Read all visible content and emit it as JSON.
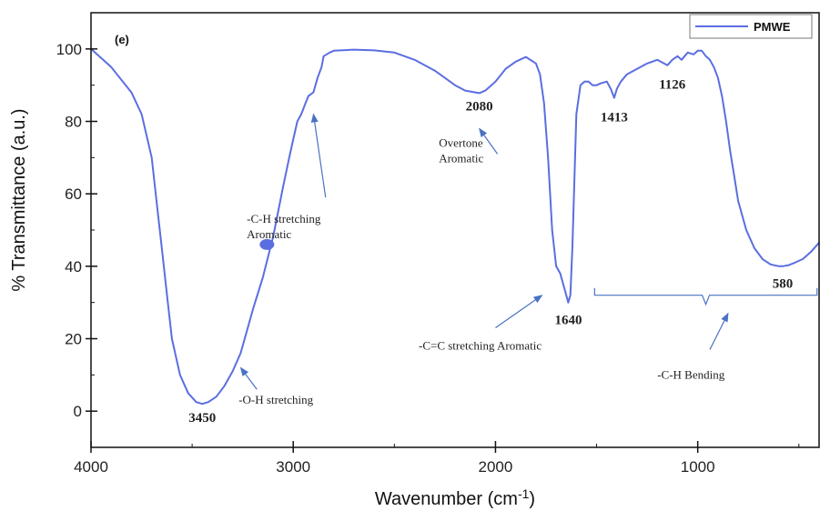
{
  "chart_data": {
    "type": "line",
    "panel_label": "(e)",
    "xlabel": "Wavenumber (cm",
    "xlabel_sup": "-1",
    "xlabel_close": ")",
    "ylabel": "% Transmittance (a.u.)",
    "xlim": [
      4000,
      400
    ],
    "ylim": [
      -10,
      110
    ],
    "x_ticks": [
      4000,
      3000,
      2000,
      1000
    ],
    "y_ticks": [
      0,
      20,
      40,
      60,
      80,
      100
    ],
    "grid": false,
    "legend_position": "top-right",
    "line_color": "#5b6ee1",
    "series": [
      {
        "name": "PMWE",
        "x": [
          4000,
          3900,
          3800,
          3750,
          3700,
          3680,
          3650,
          3620,
          3600,
          3560,
          3520,
          3480,
          3450,
          3420,
          3380,
          3340,
          3300,
          3260,
          3240,
          3200,
          3150,
          3100,
          3050,
          3020,
          3000,
          2980,
          2960,
          2940,
          2925,
          2900,
          2880,
          2860,
          2850,
          2820,
          2800,
          2700,
          2600,
          2500,
          2400,
          2300,
          2200,
          2150,
          2100,
          2080,
          2050,
          2000,
          1950,
          1900,
          1850,
          1800,
          1780,
          1760,
          1740,
          1720,
          1700,
          1680,
          1660,
          1650,
          1640,
          1630,
          1620,
          1600,
          1580,
          1560,
          1540,
          1520,
          1500,
          1480,
          1450,
          1430,
          1413,
          1400,
          1380,
          1350,
          1300,
          1250,
          1200,
          1150,
          1126,
          1100,
          1080,
          1050,
          1020,
          1000,
          980,
          960,
          940,
          920,
          900,
          880,
          860,
          840,
          820,
          800,
          760,
          720,
          680,
          640,
          600,
          580,
          550,
          520,
          480,
          440,
          400
        ],
        "y": [
          100,
          95,
          88,
          82,
          70,
          60,
          45,
          30,
          20,
          10,
          5,
          2.5,
          2,
          2.5,
          4,
          7,
          11,
          16,
          20,
          28,
          37,
          48,
          62,
          70,
          75,
          80,
          82,
          85,
          87,
          88,
          92,
          95,
          98,
          99,
          99.5,
          99.8,
          99.6,
          99,
          97,
          94,
          90,
          88.5,
          88,
          87.8,
          88.5,
          91,
          94.5,
          96.5,
          97.8,
          96,
          93,
          85,
          70,
          50,
          40,
          38,
          34,
          32,
          30,
          32,
          45,
          82,
          90,
          91,
          91,
          90,
          90,
          90.5,
          91,
          89,
          86.5,
          89,
          91,
          93,
          94.5,
          96,
          97,
          95.5,
          97,
          98,
          97,
          99,
          98.5,
          99.5,
          99.5,
          98,
          97,
          95,
          92,
          87,
          80,
          72,
          65,
          58,
          50,
          45,
          42,
          40.5,
          40,
          40,
          40.3,
          41,
          42,
          44,
          46.5
        ]
      }
    ],
    "marker_point": {
      "x": 3130,
      "y": 46
    },
    "peak_labels": [
      {
        "text": "3450",
        "x": 3450,
        "y": -3
      },
      {
        "text": "2080",
        "x": 2080,
        "y": 83
      },
      {
        "text": "1640",
        "x": 1640,
        "y": 24
      },
      {
        "text": "1413",
        "x": 1413,
        "y": 80
      },
      {
        "text": "1126",
        "x": 1126,
        "y": 89
      },
      {
        "text": "580",
        "x": 580,
        "y": 34
      }
    ],
    "annotations": [
      {
        "lines": [
          "-O-H stretching"
        ],
        "text_x": 3270,
        "text_y": 2,
        "arrow_from": [
          3180,
          6
        ],
        "arrow_to": [
          3260,
          12
        ]
      },
      {
        "lines": [
          "-C-H stretching",
          "Aromatic"
        ],
        "text_x": 3230,
        "text_y": 52,
        "arrow_from": [
          2840,
          59
        ],
        "arrow_to": [
          2900,
          82
        ]
      },
      {
        "lines": [
          "Overtone",
          "Aromatic"
        ],
        "text_x": 2280,
        "text_y": 73,
        "arrow_from": [
          1990,
          71
        ],
        "arrow_to": [
          2080,
          78
        ]
      },
      {
        "lines": [
          "-C=C stretching Aromatic"
        ],
        "text_x": 2380,
        "text_y": 17,
        "arrow_from": [
          2000,
          23
        ],
        "arrow_to": [
          1770,
          32
        ]
      },
      {
        "lines": [
          "-C-H Bending"
        ],
        "text_x": 1200,
        "text_y": 9,
        "arrow_from": [
          940,
          17
        ],
        "arrow_to": [
          850,
          27
        ]
      }
    ],
    "bracket": {
      "x_start": 1510,
      "x_end": 410,
      "y": 32
    }
  }
}
